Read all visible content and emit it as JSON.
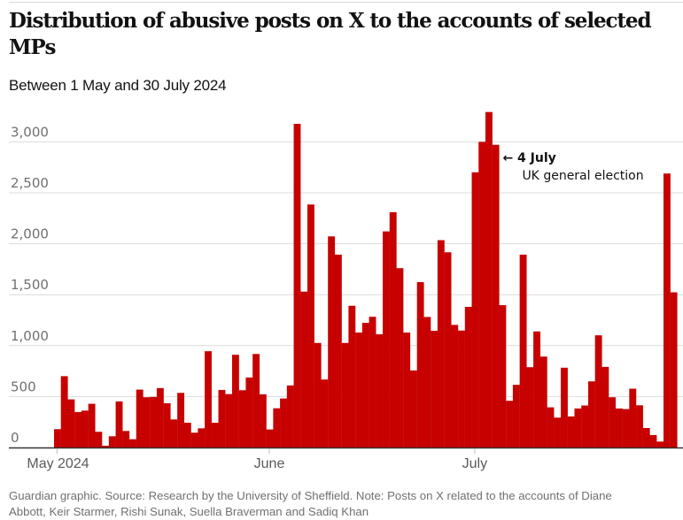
{
  "chart_data": {
    "type": "bar",
    "title": "Distribution of abusive posts on X to the accounts of selected MPs",
    "subtitle": "Between 1 May and 30 July 2024",
    "xlabel": "",
    "ylabel": "",
    "ylim": [
      0,
      3300
    ],
    "yticks": [
      0,
      500,
      1000,
      1500,
      2000,
      2500,
      3000
    ],
    "ytick_labels": [
      "0",
      "500",
      "1,000",
      "1,500",
      "2,000",
      "2,500",
      "3,000"
    ],
    "grid": true,
    "color": "#c70000",
    "x_start": "2024-05-01",
    "x_unit": "day",
    "xtick_labels": [
      {
        "label": "May 2024",
        "day_index": 0
      },
      {
        "label": "June",
        "day_index": 31
      },
      {
        "label": "July",
        "day_index": 61
      }
    ],
    "values": [
      180,
      700,
      472,
      348,
      362,
      429,
      154,
      17,
      110,
      452,
      162,
      81,
      568,
      493,
      496,
      583,
      434,
      275,
      536,
      243,
      145,
      188,
      945,
      243,
      565,
      524,
      910,
      562,
      687,
      918,
      522,
      177,
      385,
      481,
      609,
      3177,
      1530,
      2385,
      1026,
      667,
      2072,
      1893,
      1026,
      1391,
      1128,
      1223,
      1283,
      1111,
      2121,
      2309,
      1760,
      1128,
      756,
      1623,
      1281,
      1145,
      2035,
      1916,
      1203,
      1148,
      1380,
      2701,
      3000,
      3293,
      2971,
      1397,
      458,
      615,
      1893,
      788,
      1139,
      892,
      394,
      293,
      783,
      305,
      383,
      412,
      649,
      1101,
      791,
      493,
      383,
      377,
      577,
      414,
      191,
      122,
      58,
      2689,
      1523
    ],
    "annotations": [
      {
        "day_index": 64,
        "title": "4 July",
        "text": "UK general election",
        "arrow": "←"
      }
    ]
  },
  "footer": {
    "line1": "Guardian graphic. Source: Research by the University of Sheffield. Note: Posts on X related to the accounts of Diane",
    "line2": "Abbott, Keir Starmer, Rishi Sunak, Suella Braverman and Sadiq Khan"
  }
}
